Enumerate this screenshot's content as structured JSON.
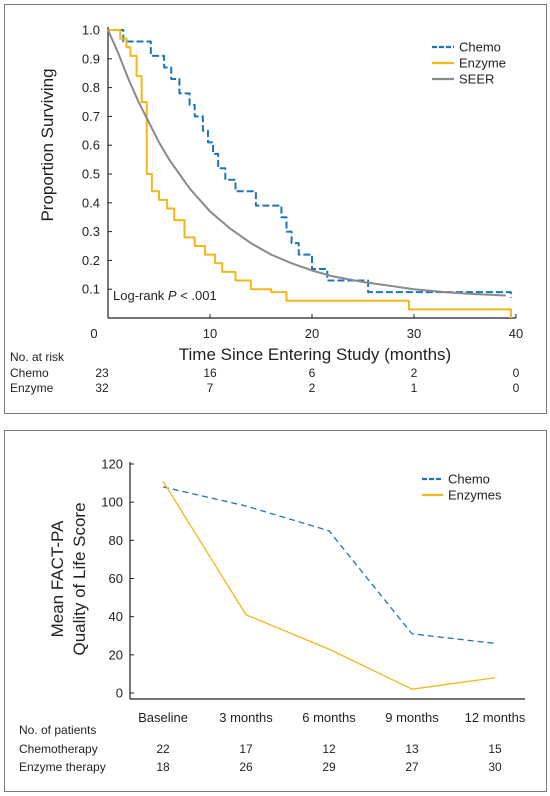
{
  "chart_data": [
    {
      "type": "line",
      "xlabel": "Time Since Entering Study (months)",
      "ylabel": "Proportion Surviving",
      "xlim": [
        0,
        40
      ],
      "ylim": [
        0,
        1.0
      ],
      "x_ticks": [
        "0",
        "10",
        "20",
        "30",
        "40"
      ],
      "y_ticks": [
        "0.1",
        "0.2",
        "0.3",
        "0.4",
        "0.5",
        "0.6",
        "0.7",
        "0.8",
        "0.9",
        "1.0"
      ],
      "annotation": "Log-rank P < .001",
      "legend_position": "top-right",
      "series": [
        {
          "name": "Chemo",
          "color": "#1b75bc",
          "style": "step-dashed",
          "x": [
            0,
            1.5,
            4.2,
            5.5,
            6.2,
            7.0,
            8.0,
            8.5,
            9.3,
            9.8,
            10.3,
            10.8,
            11.5,
            12.5,
            14.5,
            17.0,
            17.5,
            18.0,
            18.7,
            20.0,
            21.5,
            25.5,
            27.0,
            29.5,
            39.5
          ],
          "y": [
            1.0,
            0.96,
            0.91,
            0.87,
            0.83,
            0.78,
            0.74,
            0.7,
            0.65,
            0.61,
            0.57,
            0.52,
            0.48,
            0.44,
            0.39,
            0.35,
            0.3,
            0.26,
            0.22,
            0.17,
            0.13,
            0.09,
            0.09,
            0.09,
            0.07
          ]
        },
        {
          "name": "Enzyme",
          "color": "#f3b71b",
          "style": "step-solid",
          "x": [
            0,
            1.2,
            1.8,
            2.2,
            2.8,
            3.3,
            3.8,
            4.3,
            5.0,
            5.8,
            6.5,
            7.5,
            8.5,
            9.5,
            10.5,
            11.2,
            12.5,
            14.0,
            16.0,
            17.5,
            21.0,
            29.5,
            35.0,
            39.0,
            39.5
          ],
          "y": [
            1.0,
            0.97,
            0.94,
            0.91,
            0.84,
            0.75,
            0.5,
            0.44,
            0.41,
            0.38,
            0.34,
            0.28,
            0.25,
            0.22,
            0.19,
            0.16,
            0.13,
            0.1,
            0.09,
            0.06,
            0.06,
            0.03,
            0.03,
            0.03,
            0.0
          ]
        },
        {
          "name": "SEER",
          "color": "#8a8a8a",
          "style": "smooth",
          "x": [
            0,
            1,
            2,
            3,
            4,
            5,
            6,
            7,
            8,
            9,
            10,
            12,
            14,
            16,
            18,
            20,
            22,
            25,
            28,
            30,
            33,
            36,
            39
          ],
          "y": [
            1.0,
            0.92,
            0.83,
            0.75,
            0.68,
            0.61,
            0.55,
            0.5,
            0.45,
            0.41,
            0.37,
            0.31,
            0.26,
            0.22,
            0.19,
            0.165,
            0.145,
            0.125,
            0.11,
            0.1,
            0.09,
            0.083,
            0.078
          ]
        }
      ],
      "risk_table": {
        "header": "No. at risk",
        "rows": [
          {
            "label": "Chemo",
            "values": [
              "23",
              "16",
              "6",
              "2",
              "0"
            ]
          },
          {
            "label": "Enzyme",
            "values": [
              "32",
              "7",
              "2",
              "1",
              "0"
            ]
          }
        ]
      }
    },
    {
      "type": "line",
      "xlabel": "",
      "ylabel": "Mean FACT-PA Quality of Life Score",
      "ylabel_lines": [
        "Mean FACT-PA",
        "Quality of Life Score"
      ],
      "ylim": [
        0,
        120
      ],
      "y_ticks": [
        "0",
        "20",
        "40",
        "60",
        "80",
        "100",
        "120"
      ],
      "categories": [
        "Baseline",
        "3 months",
        "6 months",
        "9 months",
        "12 months"
      ],
      "legend_position": "top-right",
      "series": [
        {
          "name": "Chemo",
          "color": "#1b75bc",
          "style": "dashed",
          "values": [
            108,
            98,
            85,
            31,
            26
          ]
        },
        {
          "name": "Enzymes",
          "color": "#f3b71b",
          "style": "solid",
          "values": [
            111,
            41,
            23,
            2,
            8
          ]
        }
      ],
      "patients_table": {
        "header": "No. of patients",
        "rows": [
          {
            "label": "Chemotherapy",
            "values": [
              "22",
              "17",
              "12",
              "13",
              "15"
            ]
          },
          {
            "label": "Enzyme therapy",
            "values": [
              "18",
              "26",
              "29",
              "27",
              "30"
            ]
          }
        ]
      }
    }
  ]
}
